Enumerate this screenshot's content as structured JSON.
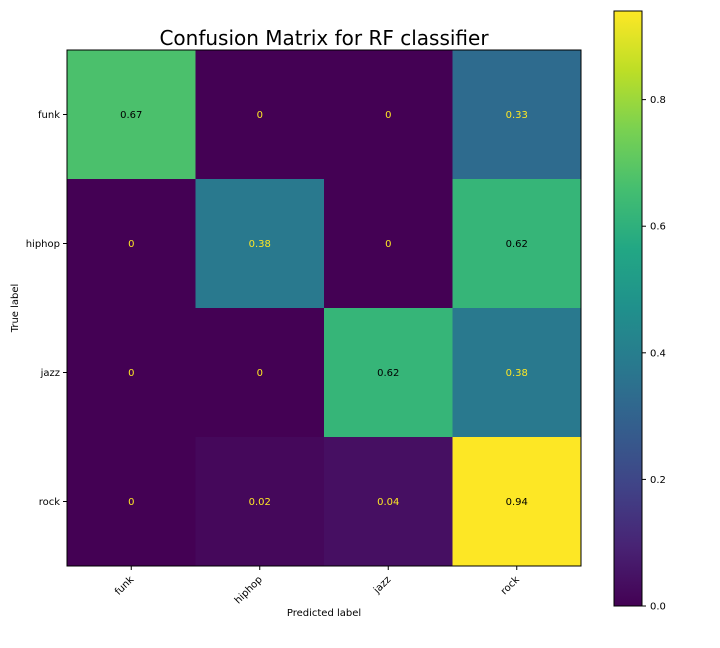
{
  "chart_data": {
    "type": "heatmap",
    "title": "Confusion Matrix for RF classifier",
    "xlabel": "Predicted label",
    "ylabel": "True label",
    "x_categories": [
      "funk",
      "hiphop",
      "jazz",
      "rock"
    ],
    "y_categories": [
      "funk",
      "hiphop",
      "jazz",
      "rock"
    ],
    "values": [
      [
        0.67,
        0,
        0,
        0.33
      ],
      [
        0,
        0.38,
        0,
        0.62
      ],
      [
        0,
        0,
        0.62,
        0.38
      ],
      [
        0,
        0.02,
        0.04,
        0.94
      ]
    ],
    "value_labels": [
      [
        "0.67",
        "0",
        "0",
        "0.33"
      ],
      [
        "0",
        "0.38",
        "0",
        "0.62"
      ],
      [
        "0",
        "0",
        "0.62",
        "0.38"
      ],
      [
        "0",
        "0.02",
        "0.04",
        "0.94"
      ]
    ],
    "colormap": "viridis",
    "color_range": [
      0,
      0.94
    ],
    "colorbar": {
      "ticks": [
        0.0,
        0.2,
        0.4,
        0.6,
        0.8
      ],
      "tick_labels": [
        "0.0",
        "0.2",
        "0.4",
        "0.6",
        "0.8"
      ]
    },
    "grid": false
  }
}
